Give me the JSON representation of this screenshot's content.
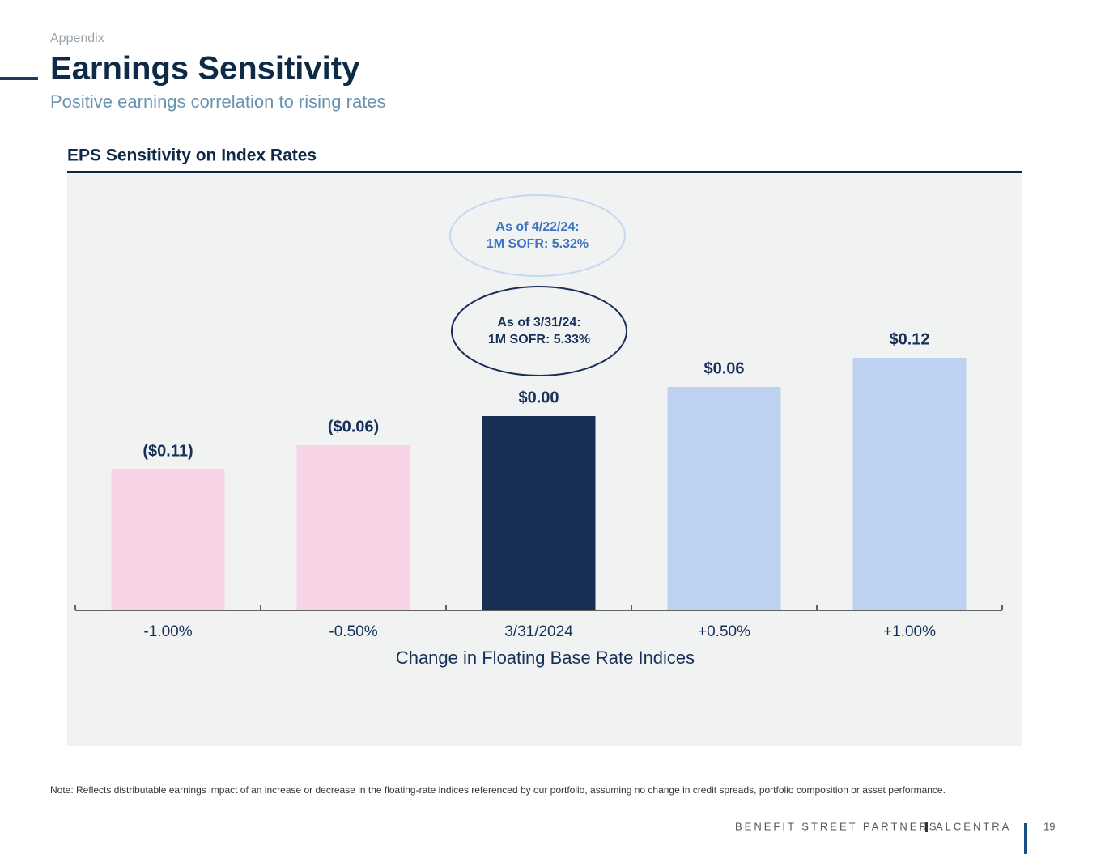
{
  "header": {
    "section": "Appendix",
    "title": "Earnings Sensitivity",
    "subtitle": "Positive earnings correlation to rising rates"
  },
  "chart_data": {
    "type": "bar",
    "title": "EPS Sensitivity on Index Rates",
    "categories": [
      "-1.00%",
      "-0.50%",
      "3/31/2024",
      "+0.50%",
      "+1.00%"
    ],
    "values": [
      -0.11,
      -0.06,
      0.0,
      0.06,
      0.12
    ],
    "value_labels": [
      "($0.11)",
      "($0.06)",
      "$0.00",
      "$0.06",
      "$0.12"
    ],
    "colors": [
      "#f6d3e5",
      "#f6d3e5",
      "#172e55",
      "#bed1f0",
      "#bed1f0"
    ],
    "ylim": [
      -0.4,
      0.15
    ],
    "x_label": "Change in Floating Base Rate Indices",
    "annotations": [
      {
        "lines": [
          "As of 4/22/24:",
          "1M SOFR: 5.32%"
        ],
        "color": "#3d74c4",
        "border": "#c5d7f2"
      },
      {
        "lines": [
          "As of 3/31/24:",
          "1M SOFR: 5.33%"
        ],
        "color": "#17305a",
        "border": "#1b2e57"
      }
    ]
  },
  "note": "Note: Reflects distributable earnings impact of an increase or decrease in the floating-rate indices referenced by our portfolio, assuming no change in credit spreads, portfolio composition or asset performance.",
  "footer": {
    "brand": [
      "BENEFIT STREET PARTNERS",
      "ALCENTRA"
    ],
    "page": "19"
  }
}
